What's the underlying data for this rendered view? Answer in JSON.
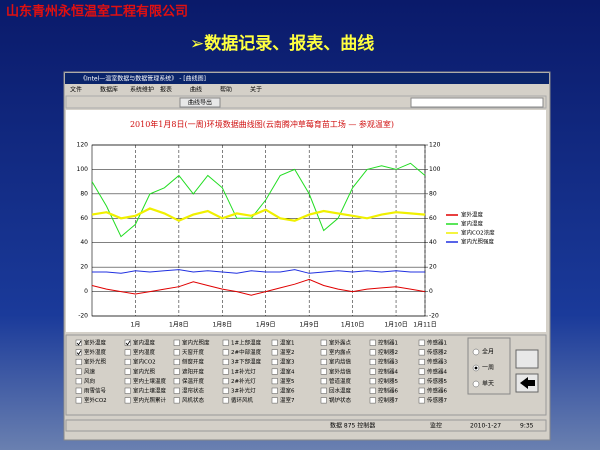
{
  "slide": {
    "company": "山东青州永恒温室工程有限公司",
    "heading": "➢数据记录、报表、曲线"
  },
  "window": {
    "title": "《Intel—温室数据与数据管理系统》 - [曲线图]",
    "menu": [
      "文件",
      "数据库",
      "系统维护",
      "报表",
      "曲线",
      "帮助",
      "关于"
    ],
    "toolbar_button": "曲线导出",
    "status": [
      "数据 875 控制器",
      "监控",
      "2010-1-27",
      "9:35"
    ]
  },
  "chart_data": {
    "type": "line",
    "title": "2010年1月8日(一周)环境数据曲线图(云南腾冲草莓育苗工场 — 参观温室)",
    "categories": [
      null,
      null,
      null,
      "1月",
      null,
      null,
      "1月8日",
      null,
      null,
      "1月8日",
      null,
      null,
      "1月9日",
      null,
      null,
      "1月9日",
      null,
      null,
      "1月10日",
      null,
      null,
      "1月10日",
      null,
      "1月11日"
    ],
    "series": [
      {
        "name": "室外温度",
        "color": "#e00000",
        "values": [
          5,
          2,
          0,
          -2,
          0,
          2,
          4,
          8,
          5,
          2,
          0,
          -3,
          0,
          3,
          6,
          10,
          5,
          2,
          0,
          2,
          3,
          4,
          2,
          0
        ]
      },
      {
        "name": "室内湿度",
        "color": "#22dd22",
        "values": [
          90,
          70,
          45,
          55,
          80,
          85,
          95,
          80,
          95,
          85,
          60,
          60,
          75,
          95,
          100,
          80,
          50,
          60,
          85,
          100,
          103,
          100,
          105,
          95
        ]
      },
      {
        "name": "室内CO2浓度",
        "color": "#f0f000",
        "values": [
          63,
          65,
          60,
          62,
          68,
          64,
          58,
          63,
          66,
          60,
          64,
          62,
          67,
          60,
          58,
          63,
          66,
          64,
          62,
          60,
          63,
          65,
          64,
          63
        ]
      },
      {
        "name": "室内光照强度",
        "color": "#2030e0",
        "values": [
          16,
          16,
          15,
          17,
          16,
          17,
          18,
          16,
          17,
          16,
          15,
          17,
          16,
          16,
          18,
          15,
          16,
          17,
          16,
          17,
          16,
          17,
          16,
          16
        ]
      }
    ],
    "ylim": [
      -20,
      120
    ],
    "yticks": [
      -20,
      0,
      20,
      40,
      60,
      80,
      100,
      120
    ],
    "y2lim": [
      -20,
      120
    ],
    "y2ticks": [
      -20,
      0,
      20,
      40,
      60,
      80,
      100,
      120
    ],
    "grid": true
  },
  "options": {
    "columns": [
      [
        "室外温度",
        "室外湿度",
        "室外光照",
        "风速",
        "风向",
        "雨雪信号",
        "室外CO2"
      ],
      [
        "室内温度",
        "室内湿度",
        "室内CO2",
        "室内光照",
        "室内土壤温度",
        "室内土壤湿度",
        "室内光照累计"
      ],
      [
        "室内光照度",
        "天窗开度",
        "侧窗开度",
        "遮阳开度",
        "保温开度",
        "湿帘状态",
        "风机状态"
      ],
      [
        "1#上部温度",
        "2#中部温度",
        "3#下部温度",
        "1#补光灯",
        "2#补光灯",
        "3#补光灯",
        "循环风机"
      ],
      [
        "温室1",
        "温室2",
        "温室3",
        "温室4",
        "温室5",
        "温室6",
        "温室7"
      ],
      [
        "室外露点",
        "室内露点",
        "室内焓值",
        "室外焓值",
        "管道温度",
        "回水温度",
        "锅炉状态"
      ],
      [
        "控制器1",
        "控制器2",
        "控制器3",
        "控制器4",
        "控制器5",
        "控制器6",
        "控制器7"
      ],
      [
        "传感器1",
        "传感器2",
        "传感器3",
        "传感器4",
        "传感器5",
        "传感器6",
        "传感器7"
      ]
    ],
    "checked": [
      "0.0",
      "0.1",
      "1.0"
    ],
    "range": [
      "全月",
      "一周",
      "单天"
    ],
    "range_selected": 1
  }
}
